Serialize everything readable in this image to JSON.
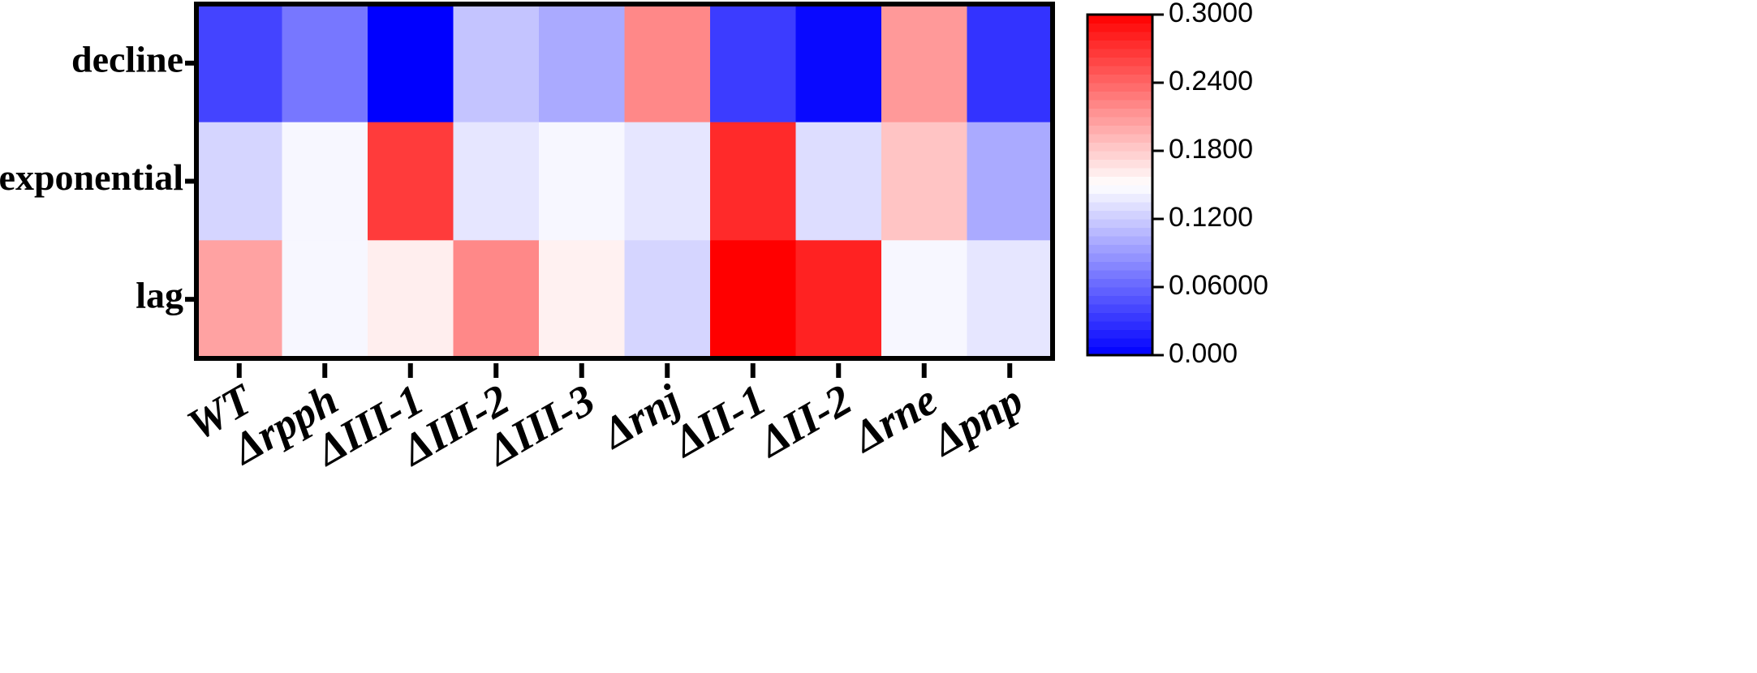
{
  "chart_data": {
    "type": "heatmap",
    "x_categories": [
      "WT",
      "Δrpph",
      "ΔIII-1",
      "ΔIII-2",
      "ΔIII-3",
      "Δrnj",
      "ΔII-1",
      "ΔII-2",
      "Δrne",
      "Δpnp"
    ],
    "y_categories": [
      "decline",
      "exponential",
      "lag"
    ],
    "values": [
      [
        0.04,
        0.07,
        0.0,
        0.115,
        0.1,
        0.22,
        0.035,
        0.005,
        0.21,
        0.03
      ],
      [
        0.125,
        0.145,
        0.265,
        0.135,
        0.145,
        0.135,
        0.275,
        0.13,
        0.185,
        0.1
      ],
      [
        0.205,
        0.145,
        0.16,
        0.22,
        0.158,
        0.125,
        0.3,
        0.28,
        0.145,
        0.135
      ]
    ],
    "zlim": [
      0,
      0.3
    ],
    "zticks": [
      {
        "value": 0,
        "label": "0.000"
      },
      {
        "value": 0.06,
        "label": "0.06000"
      },
      {
        "value": 0.12,
        "label": "0.1200"
      },
      {
        "value": 0.18,
        "label": "0.1800"
      },
      {
        "value": 0.24,
        "label": "0.2400"
      },
      {
        "value": 0.3,
        "label": "0.3000"
      }
    ],
    "colormap": [
      "#0000ff",
      "#ffffff",
      "#ff0000"
    ]
  }
}
